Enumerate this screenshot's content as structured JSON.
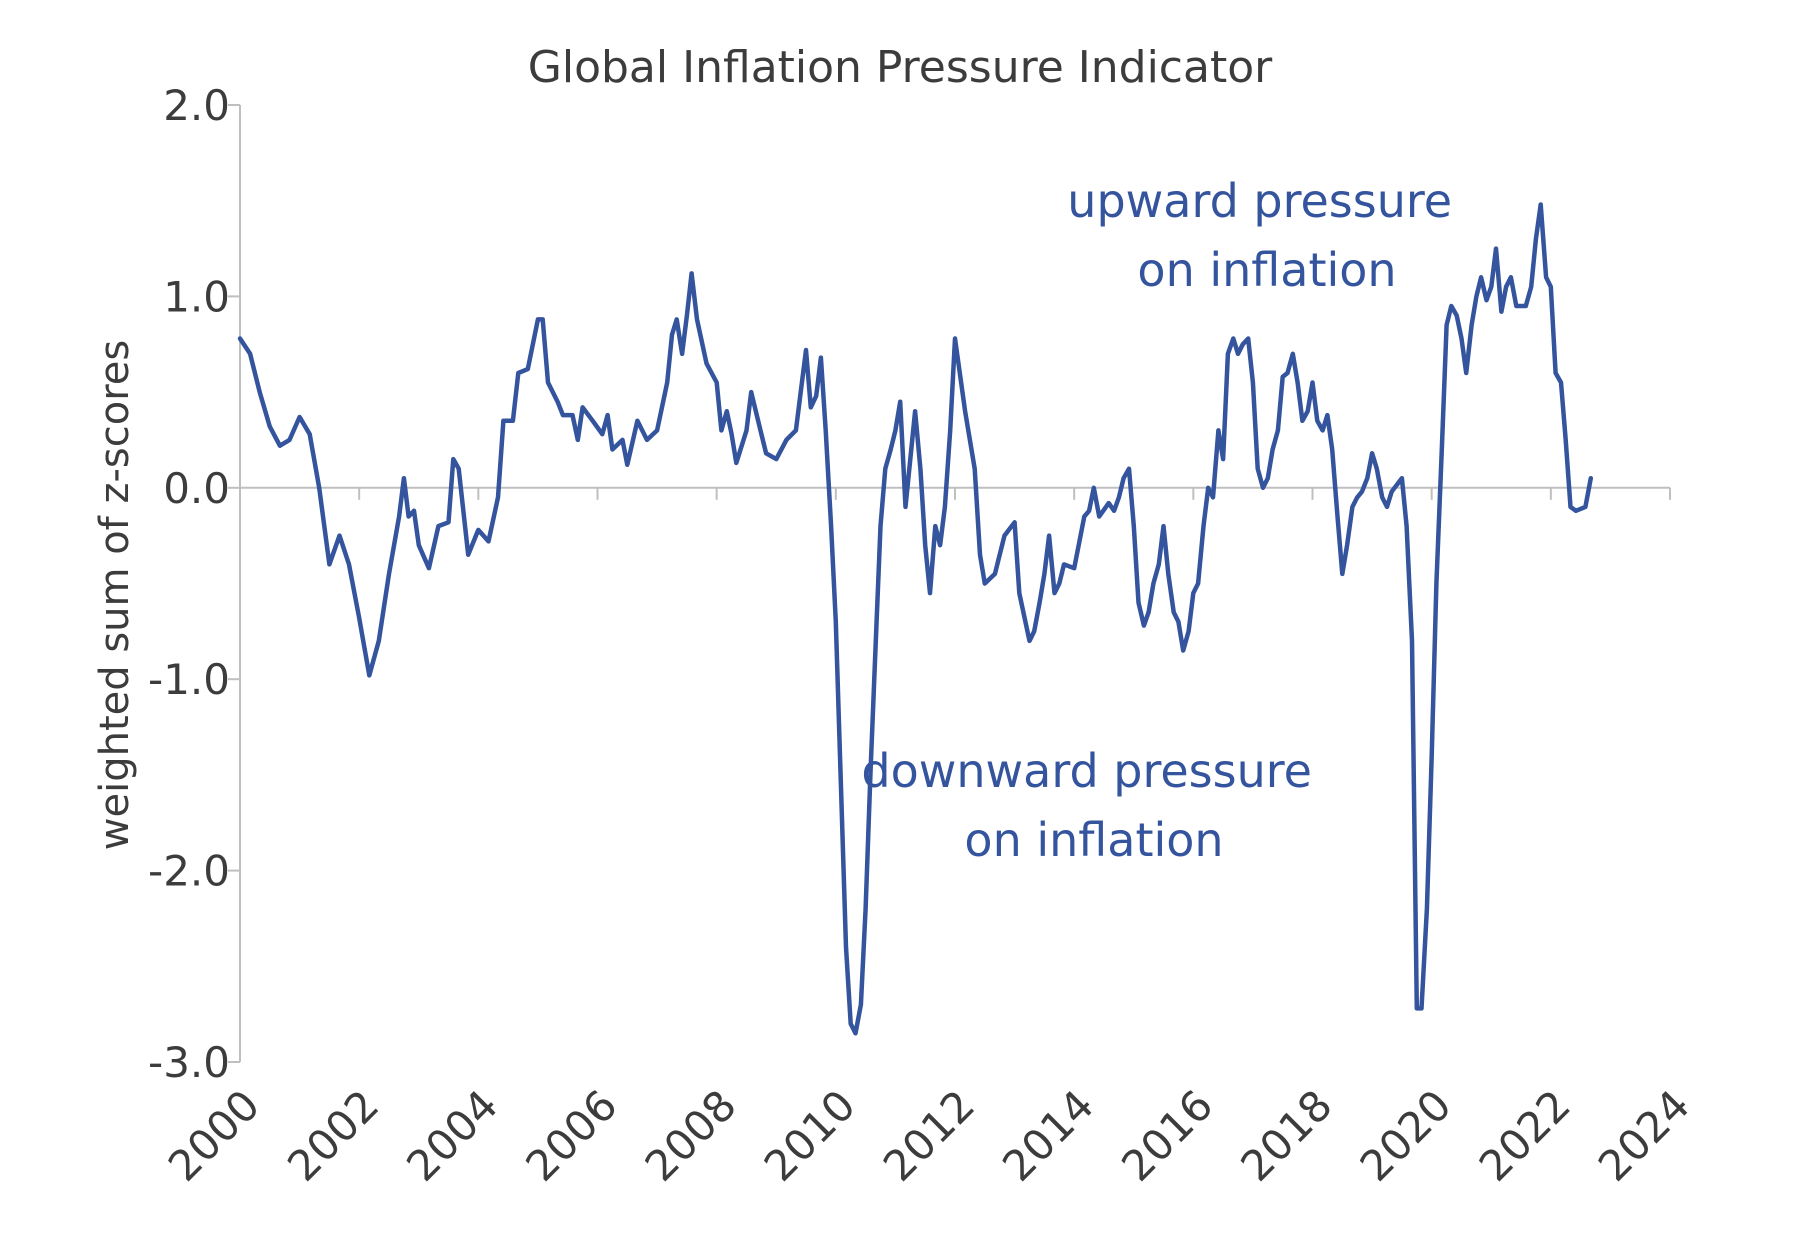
{
  "chart_data": {
    "type": "line",
    "title": "Global Inflation Pressure Indicator",
    "xlabel": "",
    "ylabel": "weighted sum of z-scores",
    "xlim": [
      2000,
      2024
    ],
    "ylim": [
      -3.0,
      2.0
    ],
    "x_ticks": [
      "2000",
      "2002",
      "2004",
      "2006",
      "2008",
      "2010",
      "2012",
      "2014",
      "2016",
      "2018",
      "2020",
      "2022",
      "2024"
    ],
    "y_ticks": [
      "2.0",
      "1.0",
      "0.0",
      "-1.0",
      "-2.0",
      "-3.0"
    ],
    "grid": false,
    "line_color": "#34549e",
    "axis_color": "#bfbfbf",
    "text_color": "#3c3c3c",
    "annotations": {
      "upward": [
        "upward pressure",
        "on inflation"
      ],
      "downward": [
        "downward pressure",
        "on inflation"
      ]
    },
    "series": [
      {
        "points": [
          [
            2000.0,
            0.78
          ],
          [
            2000.17,
            0.7
          ],
          [
            2000.33,
            0.5
          ],
          [
            2000.5,
            0.32
          ],
          [
            2000.67,
            0.22
          ],
          [
            2000.83,
            0.25
          ],
          [
            2001.0,
            0.37
          ],
          [
            2001.17,
            0.28
          ],
          [
            2001.33,
            0.0
          ],
          [
            2001.5,
            -0.4
          ],
          [
            2001.67,
            -0.25
          ],
          [
            2001.83,
            -0.4
          ],
          [
            2002.0,
            -0.68
          ],
          [
            2002.17,
            -0.98
          ],
          [
            2002.33,
            -0.8
          ],
          [
            2002.5,
            -0.45
          ],
          [
            2002.67,
            -0.15
          ],
          [
            2002.75,
            0.05
          ],
          [
            2002.83,
            -0.15
          ],
          [
            2002.92,
            -0.12
          ],
          [
            2003.0,
            -0.3
          ],
          [
            2003.17,
            -0.42
          ],
          [
            2003.33,
            -0.2
          ],
          [
            2003.5,
            -0.18
          ],
          [
            2003.58,
            0.15
          ],
          [
            2003.67,
            0.1
          ],
          [
            2003.83,
            -0.35
          ],
          [
            2004.0,
            -0.22
          ],
          [
            2004.17,
            -0.28
          ],
          [
            2004.33,
            -0.05
          ],
          [
            2004.42,
            0.35
          ],
          [
            2004.58,
            0.35
          ],
          [
            2004.67,
            0.6
          ],
          [
            2004.83,
            0.62
          ],
          [
            2005.0,
            0.88
          ],
          [
            2005.08,
            0.88
          ],
          [
            2005.17,
            0.55
          ],
          [
            2005.33,
            0.45
          ],
          [
            2005.42,
            0.38
          ],
          [
            2005.58,
            0.38
          ],
          [
            2005.67,
            0.25
          ],
          [
            2005.75,
            0.42
          ],
          [
            2005.92,
            0.35
          ],
          [
            2006.08,
            0.28
          ],
          [
            2006.17,
            0.38
          ],
          [
            2006.25,
            0.2
          ],
          [
            2006.42,
            0.25
          ],
          [
            2006.5,
            0.12
          ],
          [
            2006.67,
            0.35
          ],
          [
            2006.83,
            0.25
          ],
          [
            2007.0,
            0.3
          ],
          [
            2007.17,
            0.55
          ],
          [
            2007.25,
            0.8
          ],
          [
            2007.33,
            0.88
          ],
          [
            2007.42,
            0.7
          ],
          [
            2007.5,
            0.9
          ],
          [
            2007.58,
            1.12
          ],
          [
            2007.67,
            0.88
          ],
          [
            2007.83,
            0.65
          ],
          [
            2008.0,
            0.55
          ],
          [
            2008.08,
            0.3
          ],
          [
            2008.17,
            0.4
          ],
          [
            2008.25,
            0.28
          ],
          [
            2008.33,
            0.13
          ],
          [
            2008.5,
            0.3
          ],
          [
            2008.58,
            0.5
          ],
          [
            2008.75,
            0.28
          ],
          [
            2008.83,
            0.18
          ],
          [
            2009.0,
            0.15
          ],
          [
            2009.17,
            0.25
          ],
          [
            2009.33,
            0.3
          ],
          [
            2009.5,
            0.72
          ],
          [
            2009.58,
            0.42
          ],
          [
            2009.67,
            0.48
          ],
          [
            2009.75,
            0.68
          ],
          [
            2009.83,
            0.3
          ],
          [
            2009.92,
            -0.2
          ],
          [
            2010.0,
            -0.7
          ],
          [
            2010.08,
            -1.5
          ],
          [
            2010.17,
            -2.4
          ],
          [
            2010.25,
            -2.8
          ],
          [
            2010.33,
            -2.85
          ],
          [
            2010.42,
            -2.7
          ],
          [
            2010.5,
            -2.2
          ],
          [
            2010.58,
            -1.5
          ],
          [
            2010.67,
            -0.8
          ],
          [
            2010.75,
            -0.2
          ],
          [
            2010.83,
            0.1
          ],
          [
            2010.92,
            0.2
          ],
          [
            2011.0,
            0.3
          ],
          [
            2011.08,
            0.45
          ],
          [
            2011.17,
            -0.1
          ],
          [
            2011.25,
            0.15
          ],
          [
            2011.33,
            0.4
          ],
          [
            2011.42,
            0.1
          ],
          [
            2011.5,
            -0.3
          ],
          [
            2011.58,
            -0.55
          ],
          [
            2011.67,
            -0.2
          ],
          [
            2011.75,
            -0.3
          ],
          [
            2011.83,
            -0.1
          ],
          [
            2011.92,
            0.3
          ],
          [
            2012.0,
            0.78
          ],
          [
            2012.08,
            0.6
          ],
          [
            2012.17,
            0.4
          ],
          [
            2012.33,
            0.1
          ],
          [
            2012.42,
            -0.35
          ],
          [
            2012.5,
            -0.5
          ],
          [
            2012.67,
            -0.45
          ],
          [
            2012.83,
            -0.25
          ],
          [
            2013.0,
            -0.18
          ],
          [
            2013.08,
            -0.55
          ],
          [
            2013.25,
            -0.8
          ],
          [
            2013.33,
            -0.75
          ],
          [
            2013.42,
            -0.6
          ],
          [
            2013.5,
            -0.45
          ],
          [
            2013.58,
            -0.25
          ],
          [
            2013.67,
            -0.55
          ],
          [
            2013.75,
            -0.5
          ],
          [
            2013.83,
            -0.4
          ],
          [
            2014.0,
            -0.42
          ],
          [
            2014.17,
            -0.15
          ],
          [
            2014.25,
            -0.12
          ],
          [
            2014.33,
            0.0
          ],
          [
            2014.42,
            -0.15
          ],
          [
            2014.58,
            -0.08
          ],
          [
            2014.67,
            -0.12
          ],
          [
            2014.75,
            -0.05
          ],
          [
            2014.83,
            0.05
          ],
          [
            2014.92,
            0.1
          ],
          [
            2015.0,
            -0.2
          ],
          [
            2015.08,
            -0.6
          ],
          [
            2015.17,
            -0.72
          ],
          [
            2015.25,
            -0.65
          ],
          [
            2015.33,
            -0.5
          ],
          [
            2015.42,
            -0.4
          ],
          [
            2015.5,
            -0.2
          ],
          [
            2015.58,
            -0.45
          ],
          [
            2015.67,
            -0.65
          ],
          [
            2015.75,
            -0.7
          ],
          [
            2015.83,
            -0.85
          ],
          [
            2015.92,
            -0.75
          ],
          [
            2016.0,
            -0.55
          ],
          [
            2016.08,
            -0.5
          ],
          [
            2016.17,
            -0.2
          ],
          [
            2016.25,
            0.0
          ],
          [
            2016.33,
            -0.05
          ],
          [
            2016.42,
            0.3
          ],
          [
            2016.5,
            0.15
          ],
          [
            2016.58,
            0.7
          ],
          [
            2016.67,
            0.78
          ],
          [
            2016.75,
            0.7
          ],
          [
            2016.83,
            0.75
          ],
          [
            2016.92,
            0.78
          ],
          [
            2017.0,
            0.55
          ],
          [
            2017.08,
            0.1
          ],
          [
            2017.17,
            0.0
          ],
          [
            2017.25,
            0.05
          ],
          [
            2017.33,
            0.2
          ],
          [
            2017.42,
            0.3
          ],
          [
            2017.5,
            0.58
          ],
          [
            2017.58,
            0.6
          ],
          [
            2017.67,
            0.7
          ],
          [
            2017.75,
            0.55
          ],
          [
            2017.83,
            0.35
          ],
          [
            2017.92,
            0.4
          ],
          [
            2018.0,
            0.55
          ],
          [
            2018.08,
            0.35
          ],
          [
            2018.17,
            0.3
          ],
          [
            2018.25,
            0.38
          ],
          [
            2018.33,
            0.2
          ],
          [
            2018.42,
            -0.15
          ],
          [
            2018.5,
            -0.45
          ],
          [
            2018.58,
            -0.3
          ],
          [
            2018.67,
            -0.1
          ],
          [
            2018.75,
            -0.05
          ],
          [
            2018.83,
            -0.02
          ],
          [
            2018.92,
            0.05
          ],
          [
            2019.0,
            0.18
          ],
          [
            2019.08,
            0.1
          ],
          [
            2019.17,
            -0.05
          ],
          [
            2019.25,
            -0.1
          ],
          [
            2019.33,
            -0.02
          ],
          [
            2019.5,
            0.05
          ],
          [
            2019.58,
            -0.2
          ],
          [
            2019.67,
            -0.8
          ],
          [
            2019.75,
            -2.72
          ],
          [
            2019.83,
            -2.72
          ],
          [
            2019.92,
            -2.2
          ],
          [
            2020.0,
            -1.4
          ],
          [
            2020.08,
            -0.5
          ],
          [
            2020.17,
            0.2
          ],
          [
            2020.25,
            0.85
          ],
          [
            2020.33,
            0.95
          ],
          [
            2020.42,
            0.9
          ],
          [
            2020.5,
            0.78
          ],
          [
            2020.58,
            0.6
          ],
          [
            2020.67,
            0.85
          ],
          [
            2020.75,
            1.0
          ],
          [
            2020.83,
            1.1
          ],
          [
            2020.92,
            0.98
          ],
          [
            2021.0,
            1.05
          ],
          [
            2021.08,
            1.25
          ],
          [
            2021.17,
            0.92
          ],
          [
            2021.25,
            1.05
          ],
          [
            2021.33,
            1.1
          ],
          [
            2021.42,
            0.95
          ],
          [
            2021.58,
            0.95
          ],
          [
            2021.67,
            1.05
          ],
          [
            2021.75,
            1.3
          ],
          [
            2021.83,
            1.48
          ],
          [
            2021.92,
            1.1
          ],
          [
            2022.0,
            1.05
          ],
          [
            2022.08,
            0.6
          ],
          [
            2022.17,
            0.55
          ],
          [
            2022.25,
            0.25
          ],
          [
            2022.33,
            -0.1
          ],
          [
            2022.42,
            -0.12
          ],
          [
            2022.58,
            -0.1
          ],
          [
            2022.67,
            0.05
          ]
        ]
      }
    ]
  }
}
